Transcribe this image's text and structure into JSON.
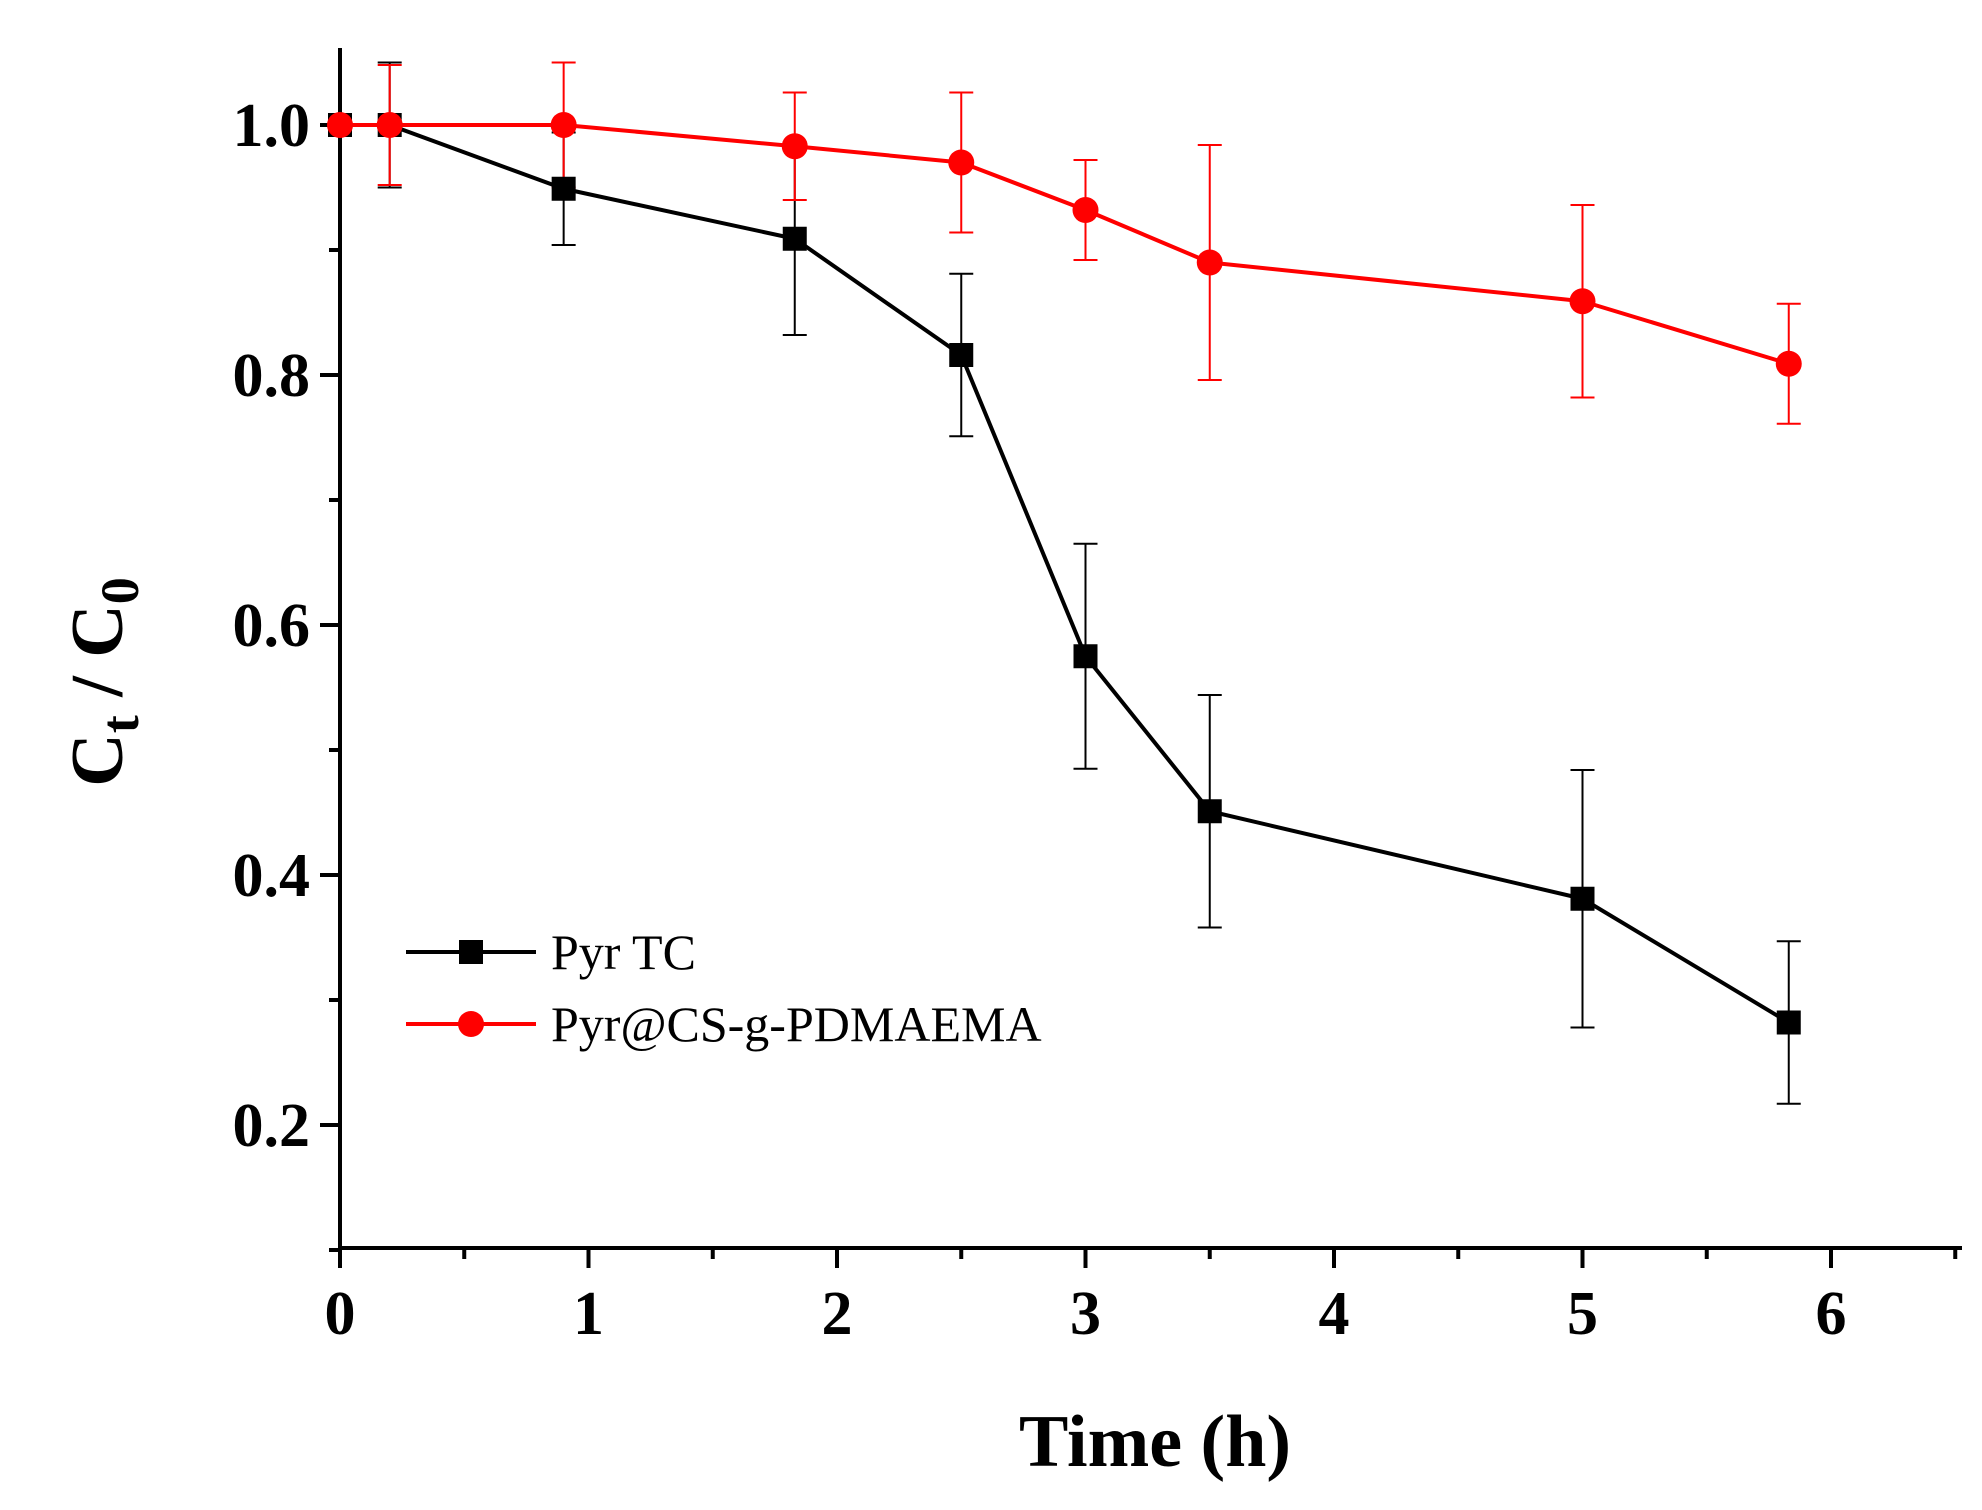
{
  "chart_data": {
    "type": "line",
    "title": "",
    "xlabel": "Time (h)",
    "ylabel": {
      "main": "C",
      "sub1": "t",
      "sep": " / C",
      "sub2": "0"
    },
    "xlim": [
      0,
      6.5
    ],
    "ylim": [
      0.1,
      1.06
    ],
    "xticks": [
      0,
      1,
      2,
      3,
      4,
      5,
      6
    ],
    "xtick_labels": [
      "0",
      "1",
      "2",
      "3",
      "4",
      "5",
      "6"
    ],
    "yticks": [
      0.2,
      0.4,
      0.6,
      0.8,
      1.0
    ],
    "ytick_labels": [
      "0.2",
      "0.4",
      "0.6",
      "0.8",
      "1.0"
    ],
    "grid": false,
    "legend_position": "lower-left",
    "series": [
      {
        "name": "Pyr TC",
        "color": "#000000",
        "marker": "square",
        "x": [
          0,
          0.2,
          0.9,
          1.83,
          2.5,
          3.0,
          3.5,
          5.0,
          5.83
        ],
        "y": [
          1.0,
          1.0,
          0.949,
          0.909,
          0.816,
          0.575,
          0.451,
          0.381,
          0.282
        ],
        "err": [
          0,
          0.05,
          0.045,
          0.077,
          0.065,
          0.09,
          0.093,
          0.103,
          0.065
        ]
      },
      {
        "name": "Pyr@CS-g-PDMAEMA",
        "color": "#ff0000",
        "marker": "circle",
        "x": [
          0,
          0.2,
          0.9,
          1.83,
          2.5,
          3.0,
          3.5,
          5.0,
          5.83
        ],
        "y": [
          1.0,
          1.0,
          1.0,
          0.983,
          0.97,
          0.932,
          0.89,
          0.859,
          0.809
        ],
        "err": [
          0,
          0.048,
          0.05,
          0.043,
          0.056,
          0.04,
          0.094,
          0.077,
          0.048
        ]
      }
    ]
  }
}
